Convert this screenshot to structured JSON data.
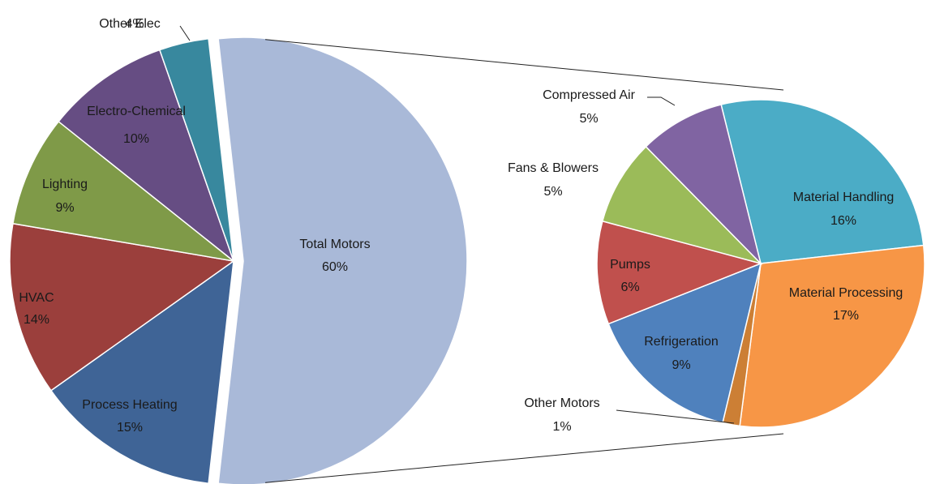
{
  "chart_data": [
    {
      "type": "pie",
      "categories": [
        "Total Motors",
        "Process Heating",
        "HVAC",
        "Lighting",
        "Electro-Chemical",
        "Other Elec"
      ],
      "values": [
        60,
        15,
        14,
        9,
        10,
        4
      ],
      "value_labels": [
        "60%",
        "15%",
        "14%",
        "9%",
        "10%",
        "4%"
      ],
      "colors": [
        "#a9b9d8",
        "#3f6496",
        "#9b3f3c",
        "#7f9a48",
        "#664d83",
        "#38889e"
      ]
    },
    {
      "type": "pie",
      "categories": [
        "Material Handling",
        "Material Processing",
        "Other Motors",
        "Refrigeration",
        "Pumps",
        "Fans & Blowers",
        "Compressed Air"
      ],
      "values": [
        16,
        17,
        1,
        9,
        6,
        5,
        5
      ],
      "value_labels": [
        "16%",
        "17%",
        "1%",
        "9%",
        "6%",
        "5%",
        "5%"
      ],
      "colors": [
        "#4bacc6",
        "#f79646",
        "#cc7f35",
        "#4f81bd",
        "#c0504d",
        "#9bbb59",
        "#8064a2"
      ]
    }
  ]
}
